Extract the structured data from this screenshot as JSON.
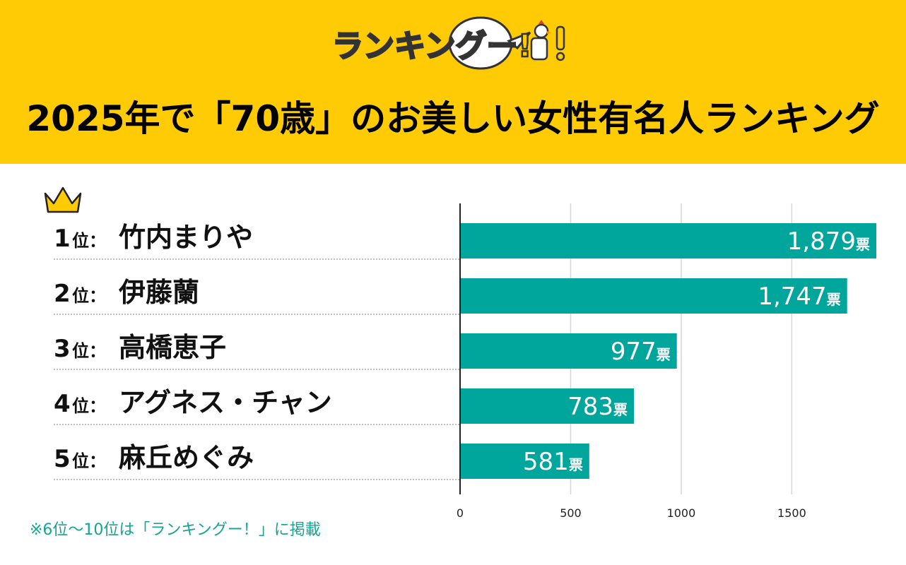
{
  "header": {
    "logo_text": "ランキングー!",
    "title": "2025年で「70歳」のお美しい女性有名人ランキング"
  },
  "colors": {
    "header_bg": "#FECB05",
    "bar": "#00A69B",
    "footnote": "#17A493"
  },
  "icons": {
    "crown": "crown-icon",
    "logo_chicken": "chicken-thumbs-up-icon"
  },
  "ranking": [
    {
      "rank": "1",
      "suffix": "位：",
      "name": "竹内まりや"
    },
    {
      "rank": "2",
      "suffix": "位：",
      "name": "伊藤蘭"
    },
    {
      "rank": "3",
      "suffix": "位：",
      "name": "高橋恵子"
    },
    {
      "rank": "4",
      "suffix": "位：",
      "name": "アグネス・チャン"
    },
    {
      "rank": "5",
      "suffix": "位：",
      "name": "麻丘めぐみ"
    }
  ],
  "chart_data": {
    "type": "bar",
    "orientation": "horizontal",
    "categories": [
      "竹内まりや",
      "伊藤蘭",
      "高橋恵子",
      "アグネス・チャン",
      "麻丘めぐみ"
    ],
    "values": [
      1879,
      1747,
      977,
      783,
      581
    ],
    "value_labels": [
      "1,879",
      "1,747",
      "977",
      "783",
      "581"
    ],
    "unit": "票",
    "xlim": [
      0,
      1879
    ],
    "xticks": [
      0,
      500,
      1000,
      1500
    ],
    "xtick_labels": [
      "0",
      "500",
      "1000",
      "1500"
    ],
    "grid": true
  },
  "footnote": "※6位〜10位は「ランキングー！」に掲載"
}
